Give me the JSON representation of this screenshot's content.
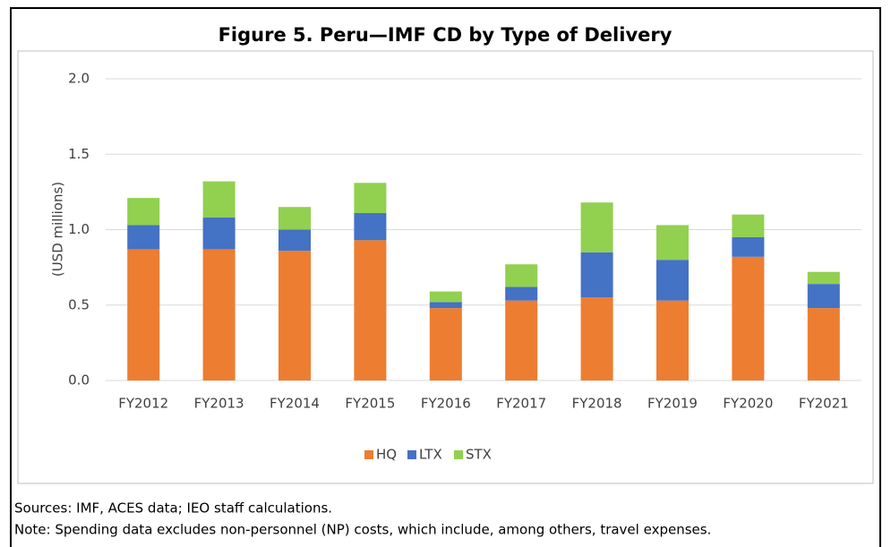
{
  "chart_data": {
    "type": "stacked_bar",
    "title": "Figure 5. Peru—IMF CD by Type of Delivery",
    "y_label": "(USD millions)",
    "categories": [
      "FY2012",
      "FY2013",
      "FY2014",
      "FY2015",
      "FY2016",
      "FY2017",
      "FY2018",
      "FY2019",
      "FY2020",
      "FY2021"
    ],
    "series": [
      {
        "name": "HQ",
        "color": "#ed7d31",
        "values": [
          0.87,
          0.87,
          0.86,
          0.93,
          0.48,
          0.53,
          0.55,
          0.53,
          0.82,
          0.48
        ]
      },
      {
        "name": "LTX",
        "color": "#4472c4",
        "values": [
          0.16,
          0.21,
          0.14,
          0.18,
          0.04,
          0.09,
          0.3,
          0.27,
          0.13,
          0.16
        ]
      },
      {
        "name": "STX",
        "color": "#92d050",
        "values": [
          0.18,
          0.24,
          0.15,
          0.2,
          0.07,
          0.15,
          0.33,
          0.23,
          0.15,
          0.08
        ]
      }
    ],
    "ylim": [
      0,
      2
    ],
    "yticks": [
      {
        "value": 0,
        "label": "0.0"
      },
      0.5,
      {
        "value": 1,
        "label": "1.0"
      },
      1.5,
      {
        "value": 2,
        "label": "2.0"
      }
    ],
    "grid": true,
    "legend": "bottom",
    "sources": "Sources: IMF, ACES data;  IEO staff calculations.",
    "note": "Note: Spending data excludes non-personnel (NP) costs, which include, among others, travel expenses."
  }
}
